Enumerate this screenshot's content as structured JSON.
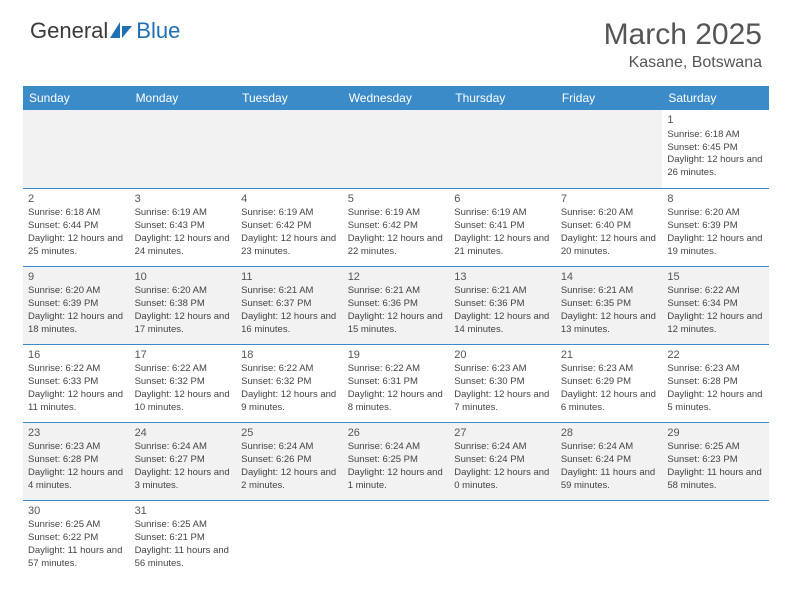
{
  "logo": {
    "text1": "General",
    "text2": "Blue"
  },
  "title": "March 2025",
  "location": "Kasane, Botswana",
  "colors": {
    "header_bg": "#3b8bc9",
    "header_text": "#ffffff",
    "row_alt_bg": "#f2f2f2",
    "border": "#3b8bc9",
    "logo_blue": "#1f6fb2"
  },
  "weekdays": [
    "Sunday",
    "Monday",
    "Tuesday",
    "Wednesday",
    "Thursday",
    "Friday",
    "Saturday"
  ],
  "weeks": [
    [
      null,
      null,
      null,
      null,
      null,
      null,
      {
        "n": "1",
        "sr": "Sunrise: 6:18 AM",
        "ss": "Sunset: 6:45 PM",
        "dl": "Daylight: 12 hours and 26 minutes."
      }
    ],
    [
      {
        "n": "2",
        "sr": "Sunrise: 6:18 AM",
        "ss": "Sunset: 6:44 PM",
        "dl": "Daylight: 12 hours and 25 minutes."
      },
      {
        "n": "3",
        "sr": "Sunrise: 6:19 AM",
        "ss": "Sunset: 6:43 PM",
        "dl": "Daylight: 12 hours and 24 minutes."
      },
      {
        "n": "4",
        "sr": "Sunrise: 6:19 AM",
        "ss": "Sunset: 6:42 PM",
        "dl": "Daylight: 12 hours and 23 minutes."
      },
      {
        "n": "5",
        "sr": "Sunrise: 6:19 AM",
        "ss": "Sunset: 6:42 PM",
        "dl": "Daylight: 12 hours and 22 minutes."
      },
      {
        "n": "6",
        "sr": "Sunrise: 6:19 AM",
        "ss": "Sunset: 6:41 PM",
        "dl": "Daylight: 12 hours and 21 minutes."
      },
      {
        "n": "7",
        "sr": "Sunrise: 6:20 AM",
        "ss": "Sunset: 6:40 PM",
        "dl": "Daylight: 12 hours and 20 minutes."
      },
      {
        "n": "8",
        "sr": "Sunrise: 6:20 AM",
        "ss": "Sunset: 6:39 PM",
        "dl": "Daylight: 12 hours and 19 minutes."
      }
    ],
    [
      {
        "n": "9",
        "sr": "Sunrise: 6:20 AM",
        "ss": "Sunset: 6:39 PM",
        "dl": "Daylight: 12 hours and 18 minutes."
      },
      {
        "n": "10",
        "sr": "Sunrise: 6:20 AM",
        "ss": "Sunset: 6:38 PM",
        "dl": "Daylight: 12 hours and 17 minutes."
      },
      {
        "n": "11",
        "sr": "Sunrise: 6:21 AM",
        "ss": "Sunset: 6:37 PM",
        "dl": "Daylight: 12 hours and 16 minutes."
      },
      {
        "n": "12",
        "sr": "Sunrise: 6:21 AM",
        "ss": "Sunset: 6:36 PM",
        "dl": "Daylight: 12 hours and 15 minutes."
      },
      {
        "n": "13",
        "sr": "Sunrise: 6:21 AM",
        "ss": "Sunset: 6:36 PM",
        "dl": "Daylight: 12 hours and 14 minutes."
      },
      {
        "n": "14",
        "sr": "Sunrise: 6:21 AM",
        "ss": "Sunset: 6:35 PM",
        "dl": "Daylight: 12 hours and 13 minutes."
      },
      {
        "n": "15",
        "sr": "Sunrise: 6:22 AM",
        "ss": "Sunset: 6:34 PM",
        "dl": "Daylight: 12 hours and 12 minutes."
      }
    ],
    [
      {
        "n": "16",
        "sr": "Sunrise: 6:22 AM",
        "ss": "Sunset: 6:33 PM",
        "dl": "Daylight: 12 hours and 11 minutes."
      },
      {
        "n": "17",
        "sr": "Sunrise: 6:22 AM",
        "ss": "Sunset: 6:32 PM",
        "dl": "Daylight: 12 hours and 10 minutes."
      },
      {
        "n": "18",
        "sr": "Sunrise: 6:22 AM",
        "ss": "Sunset: 6:32 PM",
        "dl": "Daylight: 12 hours and 9 minutes."
      },
      {
        "n": "19",
        "sr": "Sunrise: 6:22 AM",
        "ss": "Sunset: 6:31 PM",
        "dl": "Daylight: 12 hours and 8 minutes."
      },
      {
        "n": "20",
        "sr": "Sunrise: 6:23 AM",
        "ss": "Sunset: 6:30 PM",
        "dl": "Daylight: 12 hours and 7 minutes."
      },
      {
        "n": "21",
        "sr": "Sunrise: 6:23 AM",
        "ss": "Sunset: 6:29 PM",
        "dl": "Daylight: 12 hours and 6 minutes."
      },
      {
        "n": "22",
        "sr": "Sunrise: 6:23 AM",
        "ss": "Sunset: 6:28 PM",
        "dl": "Daylight: 12 hours and 5 minutes."
      }
    ],
    [
      {
        "n": "23",
        "sr": "Sunrise: 6:23 AM",
        "ss": "Sunset: 6:28 PM",
        "dl": "Daylight: 12 hours and 4 minutes."
      },
      {
        "n": "24",
        "sr": "Sunrise: 6:24 AM",
        "ss": "Sunset: 6:27 PM",
        "dl": "Daylight: 12 hours and 3 minutes."
      },
      {
        "n": "25",
        "sr": "Sunrise: 6:24 AM",
        "ss": "Sunset: 6:26 PM",
        "dl": "Daylight: 12 hours and 2 minutes."
      },
      {
        "n": "26",
        "sr": "Sunrise: 6:24 AM",
        "ss": "Sunset: 6:25 PM",
        "dl": "Daylight: 12 hours and 1 minute."
      },
      {
        "n": "27",
        "sr": "Sunrise: 6:24 AM",
        "ss": "Sunset: 6:24 PM",
        "dl": "Daylight: 12 hours and 0 minutes."
      },
      {
        "n": "28",
        "sr": "Sunrise: 6:24 AM",
        "ss": "Sunset: 6:24 PM",
        "dl": "Daylight: 11 hours and 59 minutes."
      },
      {
        "n": "29",
        "sr": "Sunrise: 6:25 AM",
        "ss": "Sunset: 6:23 PM",
        "dl": "Daylight: 11 hours and 58 minutes."
      }
    ],
    [
      {
        "n": "30",
        "sr": "Sunrise: 6:25 AM",
        "ss": "Sunset: 6:22 PM",
        "dl": "Daylight: 11 hours and 57 minutes."
      },
      {
        "n": "31",
        "sr": "Sunrise: 6:25 AM",
        "ss": "Sunset: 6:21 PM",
        "dl": "Daylight: 11 hours and 56 minutes."
      },
      null,
      null,
      null,
      null,
      null
    ]
  ]
}
